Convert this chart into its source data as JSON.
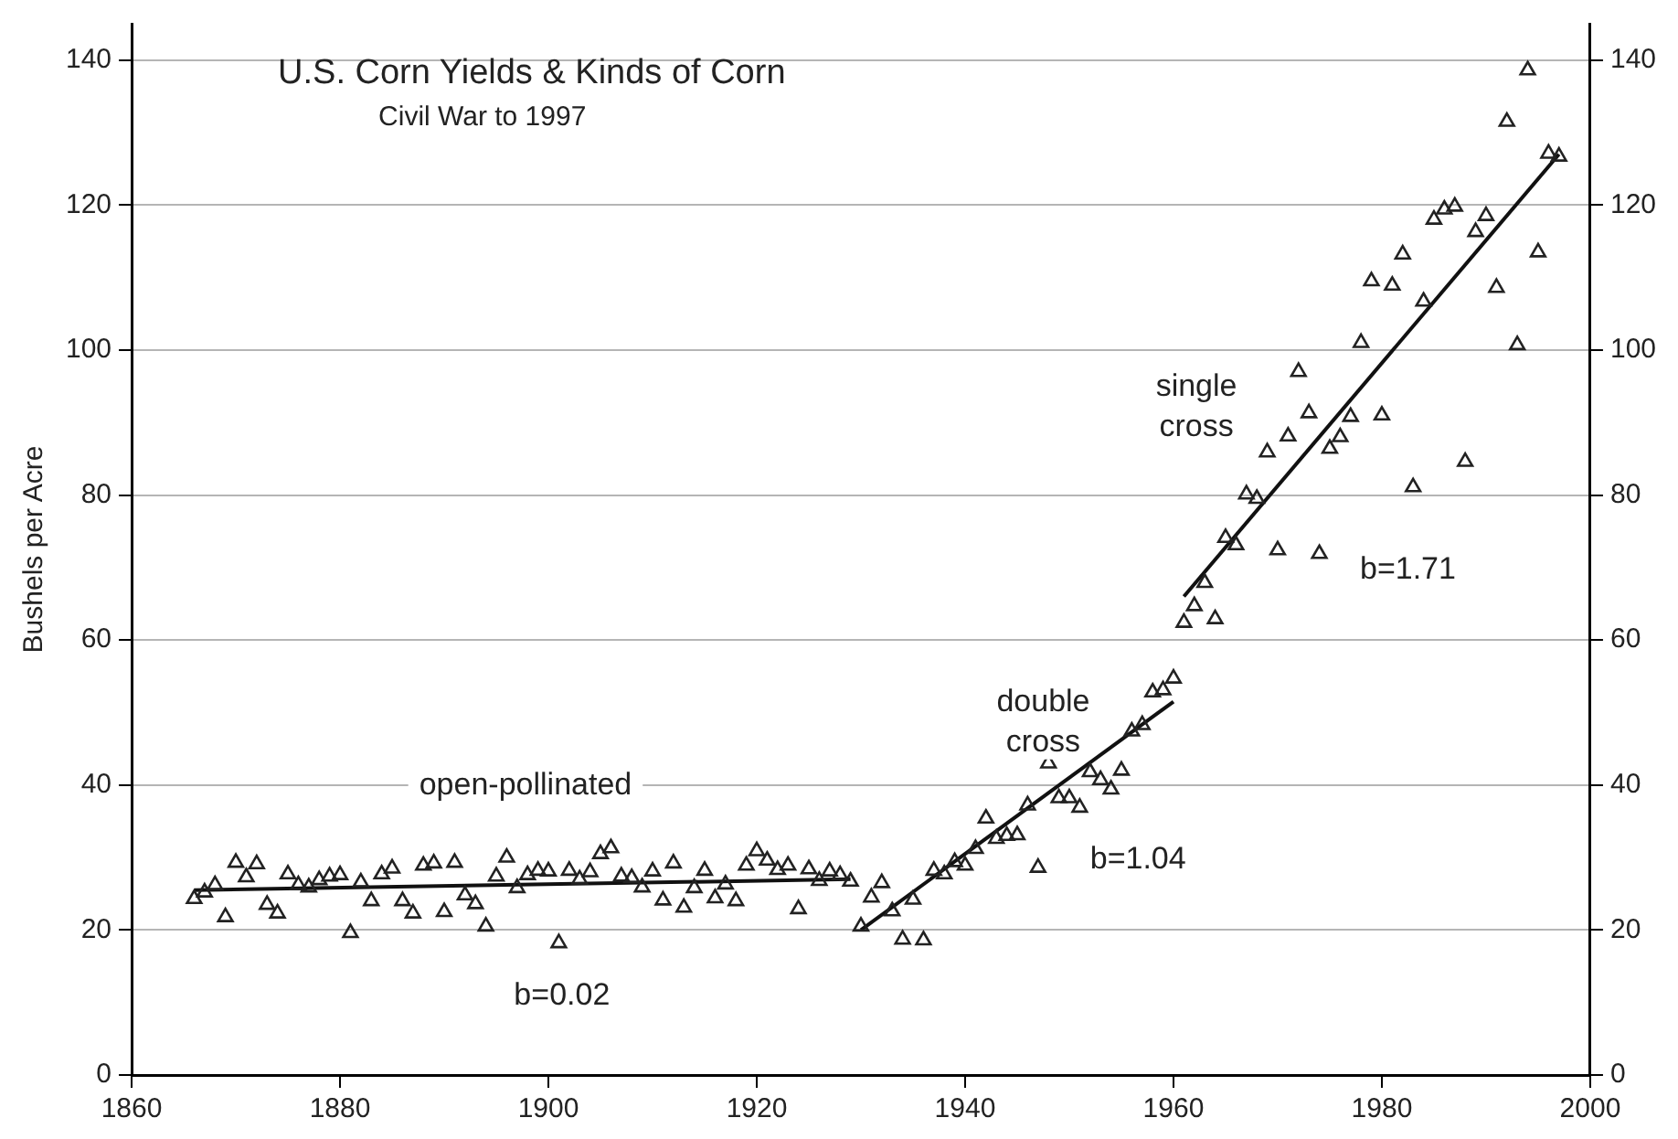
{
  "chart_data": {
    "type": "scatter",
    "title": "U.S. Corn Yields & Kinds of Corn",
    "subtitle": "Civil War to 1997",
    "ylabel": "Bushels per Acre",
    "xlim": [
      1860,
      2000
    ],
    "xticks": [
      1860,
      1880,
      1900,
      1920,
      1940,
      1960,
      1980,
      2000
    ],
    "ylim": [
      0,
      145
    ],
    "yticks": [
      0,
      20,
      40,
      60,
      80,
      100,
      120,
      140
    ],
    "y2lim": [
      0,
      145
    ],
    "y2ticks": [
      0,
      20,
      40,
      60,
      80,
      100,
      120,
      140
    ],
    "grid": "y",
    "legend": false,
    "series": [
      {
        "type": "scatter",
        "marker": "triangle",
        "color": "#222222",
        "x": [
          1866,
          1867,
          1868,
          1869,
          1870,
          1871,
          1872,
          1873,
          1874,
          1875,
          1876,
          1877,
          1878,
          1879,
          1880,
          1881,
          1882,
          1883,
          1884,
          1885,
          1886,
          1887,
          1888,
          1889,
          1890,
          1891,
          1892,
          1893,
          1894,
          1895,
          1896,
          1897,
          1898,
          1899,
          1900,
          1901,
          1902,
          1903,
          1904,
          1905,
          1906,
          1907,
          1908,
          1909,
          1910,
          1911,
          1912,
          1913,
          1914,
          1915,
          1916,
          1917,
          1918,
          1919,
          1920,
          1921,
          1922,
          1923,
          1924,
          1925,
          1926,
          1927,
          1928,
          1929,
          1930,
          1931,
          1932,
          1933,
          1934,
          1935,
          1936,
          1937,
          1938,
          1939,
          1940,
          1941,
          1942,
          1943,
          1944,
          1945,
          1946,
          1947,
          1948,
          1949,
          1950,
          1951,
          1952,
          1953,
          1954,
          1955,
          1956,
          1957,
          1958,
          1959,
          1960,
          1961,
          1962,
          1963,
          1964,
          1965,
          1966,
          1967,
          1968,
          1969,
          1970,
          1971,
          1972,
          1973,
          1974,
          1975,
          1976,
          1977,
          1978,
          1979,
          1980,
          1981,
          1982,
          1983,
          1984,
          1985,
          1986,
          1987,
          1988,
          1989,
          1990,
          1991,
          1992,
          1993,
          1994,
          1995,
          1996,
          1997
        ],
        "values": [
          24.3,
          25.2,
          26.2,
          21.8,
          29.3,
          27.3,
          29.1,
          23.5,
          22.3,
          27.7,
          26.2,
          25.9,
          26.9,
          27.4,
          27.6,
          19.6,
          26.6,
          24.0,
          27.7,
          28.5,
          24.0,
          22.3,
          28.9,
          29.2,
          22.5,
          29.3,
          24.8,
          23.6,
          20.5,
          27.4,
          30.0,
          25.8,
          27.6,
          28.2,
          28.1,
          18.2,
          28.2,
          27.0,
          28.0,
          30.5,
          31.3,
          27.4,
          27.2,
          25.9,
          28.1,
          24.1,
          29.2,
          23.1,
          25.8,
          28.2,
          24.4,
          26.3,
          24.0,
          28.9,
          30.9,
          29.6,
          28.3,
          28.9,
          22.9,
          28.4,
          26.8,
          28.1,
          27.6,
          26.7,
          20.5,
          24.5,
          26.5,
          22.6,
          18.7,
          24.2,
          18.6,
          28.2,
          27.7,
          29.4,
          28.9,
          31.2,
          35.4,
          32.6,
          33.0,
          33.1,
          37.2,
          28.6,
          43.0,
          38.2,
          38.2,
          36.9,
          41.8,
          40.7,
          39.4,
          42.0,
          47.4,
          48.3,
          52.8,
          53.1,
          54.7,
          62.4,
          64.7,
          67.9,
          62.9,
          74.1,
          73.1,
          80.1,
          79.5,
          85.9,
          72.4,
          88.1,
          97.0,
          91.3,
          71.9,
          86.4,
          88.0,
          90.8,
          101.0,
          109.5,
          91.0,
          108.9,
          113.2,
          81.1,
          106.7,
          118.0,
          119.4,
          119.8,
          84.6,
          116.3,
          118.5,
          108.6,
          131.5,
          100.7,
          138.6,
          113.5,
          127.1,
          126.7
        ]
      },
      {
        "type": "line",
        "color": "#111111",
        "x": [
          1866,
          1929
        ],
        "values": [
          25.5,
          27
        ]
      },
      {
        "type": "line",
        "color": "#111111",
        "x": [
          1930,
          1960
        ],
        "values": [
          20,
          51.5
        ]
      },
      {
        "type": "line",
        "color": "#111111",
        "x": [
          1961,
          1997
        ],
        "values": [
          66,
          127
        ]
      }
    ],
    "annotations": [
      "open-pollinated",
      "b=0.02",
      "double cross",
      "b=1.04",
      "single cross",
      "b=1.71"
    ]
  }
}
